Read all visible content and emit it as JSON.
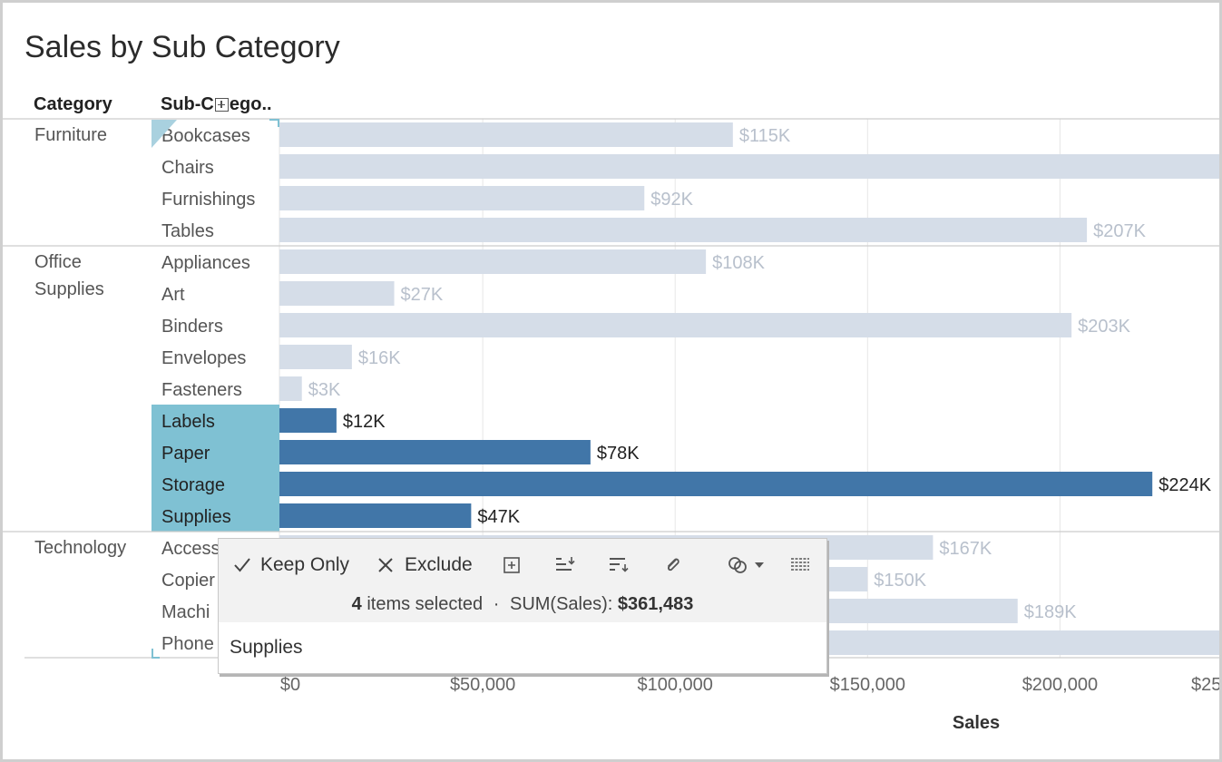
{
  "chart_data": {
    "type": "bar",
    "title": "Sales by Sub Category",
    "column_headers": [
      "Category",
      "Sub-C",
      "ego.."
    ],
    "xlabel": "Sales",
    "x_ticks": [
      "$0",
      "$50,000",
      "$100,000",
      "$150,000",
      "$200,000",
      "$25"
    ],
    "xlim": [
      0,
      250000
    ],
    "groups": [
      {
        "name": "Furniture",
        "items": [
          {
            "label": "Bookcases",
            "value": 115000,
            "text": "$115K",
            "selected": false
          },
          {
            "label": "Chairs",
            "value": 328000,
            "text": "",
            "selected": false
          },
          {
            "label": "Furnishings",
            "value": 92000,
            "text": "$92K",
            "selected": false
          },
          {
            "label": "Tables",
            "value": 207000,
            "text": "$207K",
            "selected": false
          }
        ]
      },
      {
        "name": "Office\nSupplies",
        "items": [
          {
            "label": "Appliances",
            "value": 108000,
            "text": "$108K",
            "selected": false
          },
          {
            "label": "Art",
            "value": 27000,
            "text": "$27K",
            "selected": false
          },
          {
            "label": "Binders",
            "value": 203000,
            "text": "$203K",
            "selected": false
          },
          {
            "label": "Envelopes",
            "value": 16000,
            "text": "$16K",
            "selected": false
          },
          {
            "label": "Fasteners",
            "value": 3000,
            "text": "$3K",
            "selected": false
          },
          {
            "label": "Labels",
            "value": 12000,
            "text": "$12K",
            "selected": true
          },
          {
            "label": "Paper",
            "value": 78000,
            "text": "$78K",
            "selected": true
          },
          {
            "label": "Storage",
            "value": 224000,
            "text": "$224K",
            "selected": true
          },
          {
            "label": "Supplies",
            "value": 47000,
            "text": "$47K",
            "selected": true
          }
        ]
      },
      {
        "name": "Technology",
        "items": [
          {
            "label": "Access",
            "value": 167000,
            "text": "$167K",
            "selected": false
          },
          {
            "label": "Copier",
            "value": 150000,
            "text": "$150K",
            "selected": false
          },
          {
            "label": "Machi",
            "value": 189000,
            "text": "$189K",
            "selected": false
          },
          {
            "label": "Phone",
            "value": 330000,
            "text": "",
            "selected": false
          }
        ]
      }
    ],
    "grid": true,
    "colors": {
      "bar": "#d5dde8",
      "bar_selected": "#4176a8",
      "label_selected_bg": "#7fc1d3",
      "value_text": "#b8c0cc",
      "value_text_selected": "#222222",
      "grid": "#e6e6e6",
      "divider": "#cccccc"
    }
  },
  "tooltip": {
    "keep_only_label": "Keep Only",
    "exclude_label": "Exclude",
    "icons": [
      "group-members-icon",
      "sort-ascending-icon",
      "sort-descending-icon",
      "paperclip-icon",
      "link-sets-icon",
      "view-data-icon"
    ],
    "summary_count": "4",
    "summary_text": "items selected",
    "summary_sep": "·",
    "summary_measure": "SUM(Sales):",
    "summary_value": "$361,483",
    "field_value": "Supplies"
  }
}
